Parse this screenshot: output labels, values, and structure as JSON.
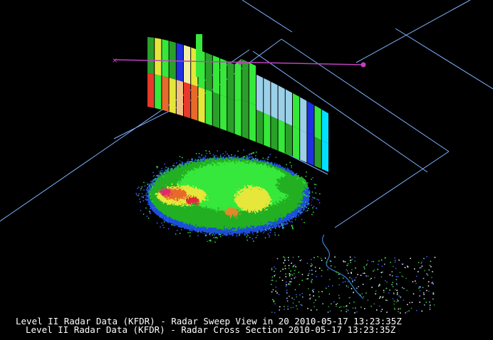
{
  "captions": {
    "sweep": "Level II Radar Data (KFDR) - Radar Sweep View in 20 2010-05-17 13:23:35Z",
    "cross_section": "Level II Radar Data (KFDR) - Radar Cross Section 2010-05-17 13:23:35Z"
  }
}
